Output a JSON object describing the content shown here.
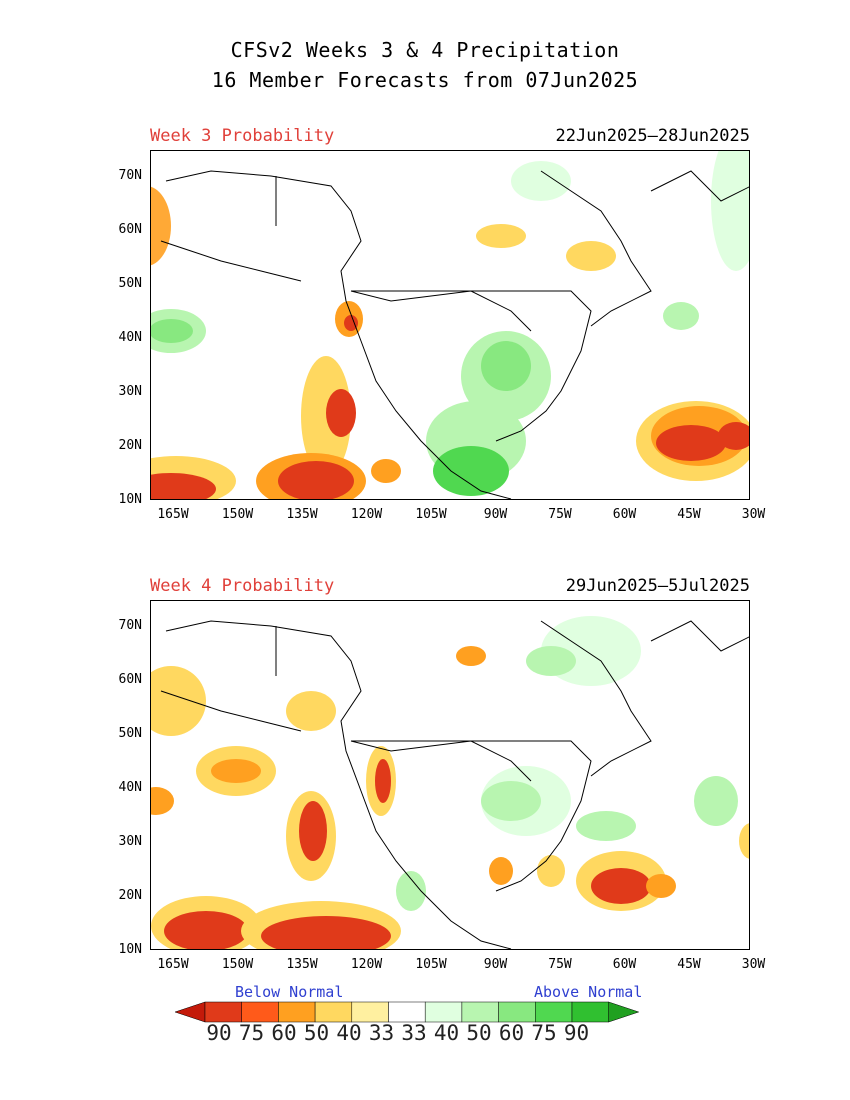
{
  "title_line1": "CFSv2 Weeks 3 & 4 Precipitation",
  "title_line2": "16 Member Forecasts from 07Jun2025",
  "panels": [
    {
      "label": "Week 3 Probability",
      "dates": "22Jun2025—28Jun2025"
    },
    {
      "label": "Week 4 Probability",
      "dates": "29Jun2025—5Jul2025"
    }
  ],
  "lat_ticks": [
    "70N",
    "60N",
    "50N",
    "40N",
    "30N",
    "20N",
    "10N"
  ],
  "lon_ticks": [
    "165W",
    "150W",
    "135W",
    "120W",
    "105W",
    "90W",
    "75W",
    "60W",
    "45W",
    "30W"
  ],
  "legend": {
    "below_label": "Below Normal",
    "above_label": "Above Normal",
    "values": [
      "90",
      "75",
      "60",
      "50",
      "40",
      "33",
      "33",
      "40",
      "50",
      "60",
      "75",
      "90"
    ],
    "colors": [
      "#c41a0a",
      "#e03a1a",
      "#ff5a1a",
      "#ffa020",
      "#ffd860",
      "#fff0a0",
      "#ffffff",
      "#e0ffe0",
      "#b8f5b0",
      "#88e880",
      "#50d850",
      "#30c030",
      "#20a020"
    ]
  }
}
